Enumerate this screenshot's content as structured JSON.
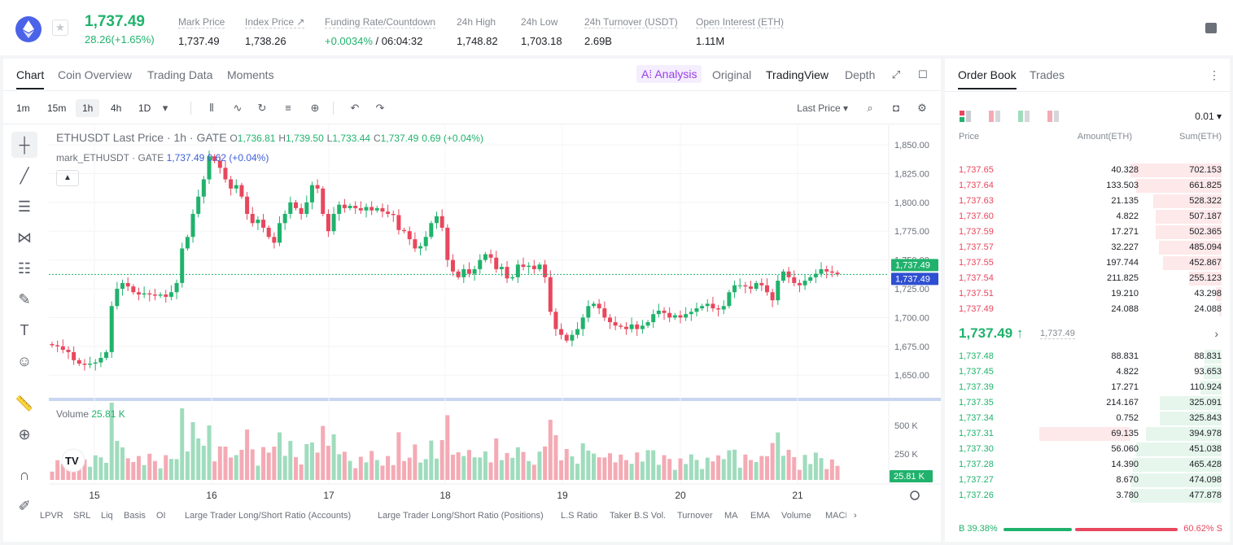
{
  "header": {
    "last_price": "1,737.49",
    "change": "28.26(+1.65%)",
    "stats": [
      {
        "label": "Mark Price",
        "value": "1,737.49"
      },
      {
        "label": "Index Price ↗",
        "value": "1,738.26"
      },
      {
        "label": "Funding Rate/Countdown",
        "value_green": "+0.0034%",
        "value": " / 06:04:32"
      },
      {
        "label": "24h High",
        "value": "1,748.82"
      },
      {
        "label": "24h Low",
        "value": "1,703.18"
      },
      {
        "label": "24h Turnover (USDT)",
        "value": "2.69B"
      },
      {
        "label": "Open Interest (ETH)",
        "value": "1.11M"
      }
    ]
  },
  "chart_tabs": [
    "Chart",
    "Coin Overview",
    "Trading Data",
    "Moments"
  ],
  "view_tabs": {
    "ai": "A⁞ Analysis",
    "original": "Original",
    "tradingview": "TradingView",
    "depth": "Depth"
  },
  "timeframes": [
    "1m",
    "15m",
    "1h",
    "4h",
    "1D"
  ],
  "price_type": "Last Price",
  "legend": {
    "symbol": "ETHUSDT Last Price · 1h · GATE",
    "o_label": "O",
    "o": "1,736.81",
    "h_label": "H",
    "h": "1,739.50",
    "l_label": "L",
    "l": "1,733.44",
    "c_label": "C",
    "c": "1,737.49",
    "chg": "0.69 (+0.04%)",
    "mark_name": "mark_ETHUSDT · GATE",
    "mark_val": "1,737.49 0.62 (+0.04%)",
    "volume_label": "Volume",
    "volume_val": "25.81 K"
  },
  "chart_data": {
    "type": "candlestick",
    "price_axis": [
      "1,850.00",
      "1,825.00",
      "1,800.00",
      "1,775.00",
      "1,750.00",
      "1,725.00",
      "1,700.00",
      "1,675.00",
      "1,650.00"
    ],
    "price_range": [
      1645,
      1855
    ],
    "volume_axis": [
      "500 K",
      "250 K"
    ],
    "x_labels": [
      "15",
      "16",
      "17",
      "18",
      "19",
      "20",
      "21"
    ],
    "last_price_tag": "1,737.49",
    "mark_price_tag": "1,737.49",
    "volume_tag": "25.81 K",
    "close_series": [
      1676,
      1675,
      1672,
      1670,
      1663,
      1660,
      1659,
      1660,
      1661,
      1665,
      1670,
      1710,
      1725,
      1730,
      1727,
      1722,
      1720,
      1721,
      1720,
      1719,
      1720,
      1718,
      1722,
      1730,
      1760,
      1770,
      1790,
      1805,
      1820,
      1840,
      1836,
      1830,
      1820,
      1812,
      1815,
      1805,
      1790,
      1782,
      1785,
      1778,
      1770,
      1765,
      1782,
      1790,
      1800,
      1795,
      1790,
      1800,
      1815,
      1812,
      1790,
      1775,
      1790,
      1798,
      1795,
      1797,
      1795,
      1793,
      1796,
      1793,
      1795,
      1792,
      1790,
      1789,
      1776,
      1775,
      1768,
      1760,
      1762,
      1770,
      1782,
      1788,
      1778,
      1750,
      1740,
      1735,
      1742,
      1738,
      1742,
      1750,
      1755,
      1752,
      1742,
      1744,
      1734,
      1735,
      1746,
      1744,
      1745,
      1742,
      1746,
      1735,
      1705,
      1690,
      1685,
      1680,
      1685,
      1690,
      1700,
      1710,
      1712,
      1708,
      1700,
      1696,
      1693,
      1692,
      1690,
      1694,
      1690,
      1693,
      1696,
      1703,
      1706,
      1704,
      1700,
      1702,
      1700,
      1703,
      1705,
      1708,
      1710,
      1712,
      1708,
      1707,
      1710,
      1722,
      1728,
      1728,
      1727,
      1725,
      1730,
      1728,
      1722,
      1715,
      1732,
      1740,
      1735,
      1730,
      1728,
      1732,
      1735,
      1738,
      1742,
      1740,
      1739,
      1737.49
    ]
  },
  "indicators": [
    "LPVR",
    "SRL",
    "Liq",
    "Basis",
    "OI",
    "Large Trader Long/Short Ratio (Accounts)",
    "Large Trader Long/Short Ratio (Positions)",
    "L.S Ratio",
    "Taker B.S Vol.",
    "Turnover",
    "MA",
    "EMA",
    "Volume",
    "MACD"
  ],
  "orderbook": {
    "tabs": [
      "Order Book",
      "Trades"
    ],
    "precision": "0.01",
    "headers": {
      "price": "Price",
      "amount": "Amount(ETH)",
      "sum": "Sum(ETH)"
    },
    "asks": [
      {
        "price": "1,737.65",
        "amount": "40.328",
        "sum": "702.153",
        "depth": 1.0
      },
      {
        "price": "1,737.64",
        "amount": "133.503",
        "sum": "661.825",
        "depth": 0.94
      },
      {
        "price": "1,737.63",
        "amount": "21.135",
        "sum": "528.322",
        "depth": 0.75
      },
      {
        "price": "1,737.60",
        "amount": "4.822",
        "sum": "507.187",
        "depth": 0.72
      },
      {
        "price": "1,737.59",
        "amount": "17.271",
        "sum": "502.365",
        "depth": 0.72
      },
      {
        "price": "1,737.57",
        "amount": "32.227",
        "sum": "485.094",
        "depth": 0.69
      },
      {
        "price": "1,737.55",
        "amount": "197.744",
        "sum": "452.867",
        "depth": 0.64
      },
      {
        "price": "1,737.54",
        "amount": "211.825",
        "sum": "255.123",
        "depth": 0.36
      },
      {
        "price": "1,737.51",
        "amount": "19.210",
        "sum": "43.298",
        "depth": 0.06
      },
      {
        "price": "1,737.49",
        "amount": "24.088",
        "sum": "24.088",
        "depth": 0.03
      }
    ],
    "mid_price": "1,737.49 ↑",
    "mid_mark": "1,737.49",
    "bids": [
      {
        "price": "1,737.48",
        "amount": "88.831",
        "sum": "88.831",
        "depth": 0.19,
        "amount_depth": 0
      },
      {
        "price": "1,737.45",
        "amount": "4.822",
        "sum": "93.653",
        "depth": 0.2,
        "amount_depth": 0
      },
      {
        "price": "1,737.39",
        "amount": "17.271",
        "sum": "110.924",
        "depth": 0.23,
        "amount_depth": 0
      },
      {
        "price": "1,737.35",
        "amount": "214.167",
        "sum": "325.091",
        "depth": 0.68,
        "amount_depth": 0
      },
      {
        "price": "1,737.34",
        "amount": "0.752",
        "sum": "325.843",
        "depth": 0.68,
        "amount_depth": 0
      },
      {
        "price": "1,737.31",
        "amount": "69.135",
        "sum": "394.978",
        "depth": 0.83,
        "amount_depth": 0.32
      },
      {
        "price": "1,737.30",
        "amount": "56.060",
        "sum": "451.038",
        "depth": 0.94,
        "amount_depth": 0
      },
      {
        "price": "1,737.28",
        "amount": "14.390",
        "sum": "465.428",
        "depth": 0.97,
        "amount_depth": 0
      },
      {
        "price": "1,737.27",
        "amount": "8.670",
        "sum": "474.098",
        "depth": 0.99,
        "amount_depth": 0
      },
      {
        "price": "1,737.26",
        "amount": "3.780",
        "sum": "477.878",
        "depth": 1.0,
        "amount_depth": 0
      }
    ],
    "buy_ratio": "B 39.38%",
    "sell_ratio": "60.62% S"
  },
  "colors": {
    "up": "#20b26c",
    "down": "#e8475d",
    "mark": "#3c5fd8"
  }
}
